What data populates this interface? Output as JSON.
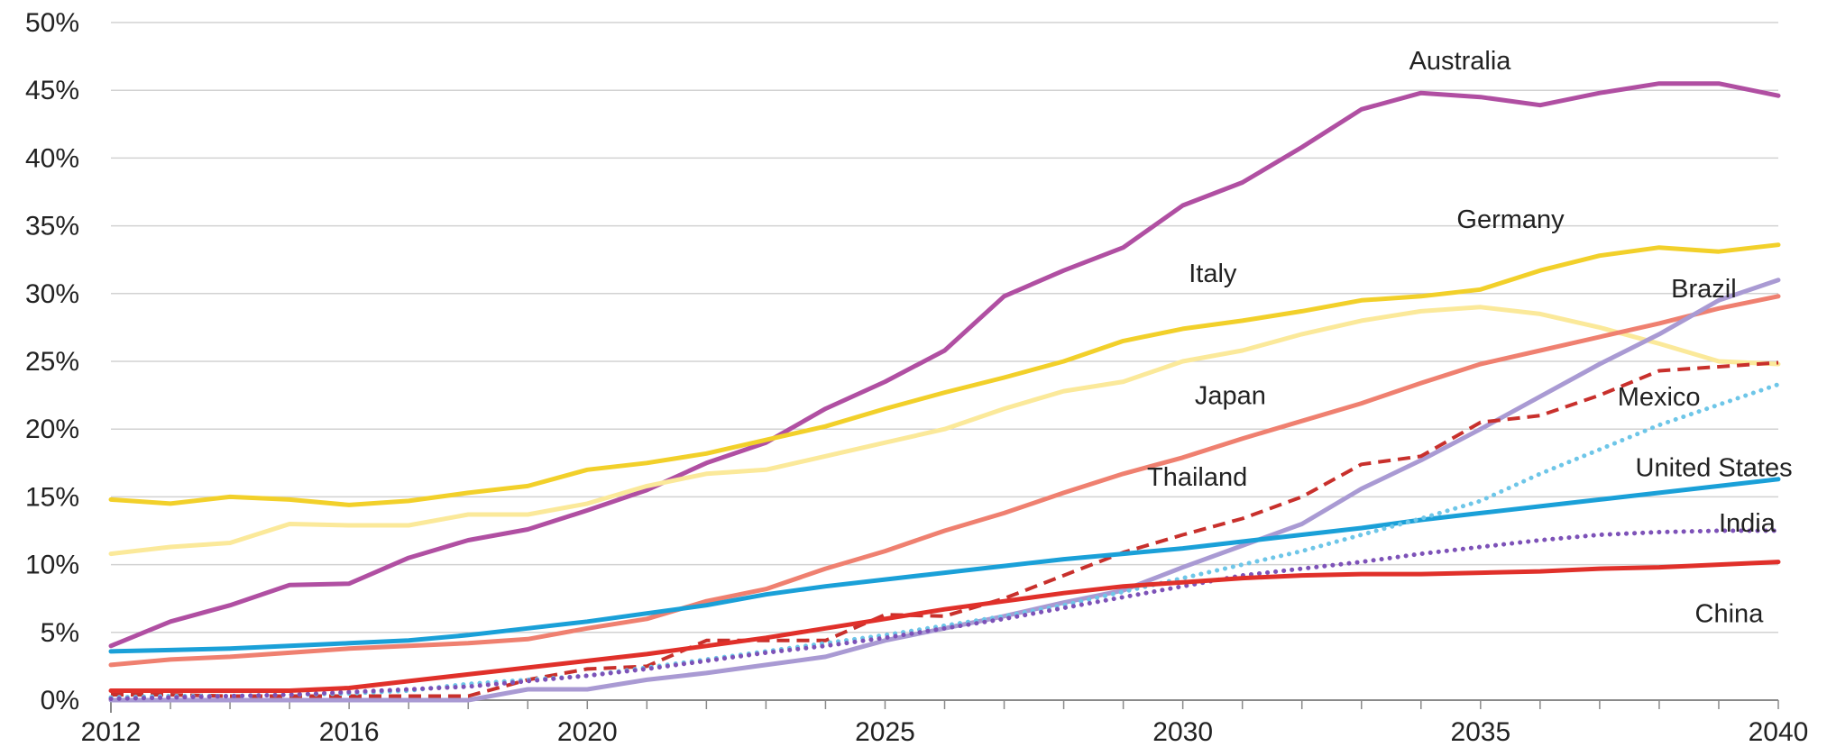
{
  "chart_data": {
    "type": "line",
    "title": "",
    "xlabel": "",
    "ylabel": "",
    "xlim": [
      2012,
      2040
    ],
    "ylim": [
      0,
      50
    ],
    "y_ticks": [
      "0%",
      "5%",
      "10%",
      "15%",
      "20%",
      "25%",
      "30%",
      "35%",
      "40%",
      "45%",
      "50%"
    ],
    "x_ticks": [
      "2012",
      "2016",
      "2020",
      "2025",
      "2030",
      "2035",
      "2040"
    ],
    "x": [
      2012,
      2013,
      2014,
      2015,
      2016,
      2017,
      2018,
      2019,
      2020,
      2021,
      2022,
      2023,
      2024,
      2025,
      2026,
      2027,
      2028,
      2029,
      2030,
      2031,
      2032,
      2033,
      2034,
      2035,
      2036,
      2037,
      2038,
      2039,
      2040
    ],
    "grid": "horizontal",
    "legend": "none",
    "series": [
      {
        "name": "Australia",
        "color": "#b04fa2",
        "style": "solid",
        "values": [
          4,
          5.8,
          7,
          8.5,
          8.6,
          10.5,
          11.8,
          12.6,
          14,
          15.5,
          17.5,
          19,
          21.5,
          23.5,
          25.8,
          29.8,
          31.7,
          33.4,
          36.5,
          38.2,
          40.8,
          43.6,
          44.8,
          44.5,
          43.9,
          44.8,
          45.5,
          45.5,
          44.6
        ]
      },
      {
        "name": "Germany",
        "color": "#f2d02a",
        "style": "solid",
        "values": [
          14.8,
          14.5,
          15,
          14.8,
          14.4,
          14.7,
          15.3,
          15.8,
          17,
          17.5,
          18.2,
          19.2,
          20.2,
          21.5,
          22.7,
          23.8,
          25,
          26.5,
          27.4,
          28,
          28.7,
          29.5,
          29.8,
          30.3,
          31.7,
          32.8,
          33.4,
          33.1,
          33.6
        ]
      },
      {
        "name": "Italy",
        "color": "#fbe99a",
        "style": "solid",
        "values": [
          10.8,
          11.3,
          11.6,
          13,
          12.9,
          12.9,
          13.7,
          13.7,
          14.5,
          15.8,
          16.7,
          17,
          18,
          19,
          20,
          21.5,
          22.8,
          23.5,
          25,
          25.8,
          27,
          28,
          28.7,
          29,
          28.5,
          27.5,
          26.3,
          25,
          24.8
        ]
      },
      {
        "name": "Japan",
        "color": "#ef8070",
        "style": "solid",
        "values": [
          2.6,
          3,
          3.2,
          3.5,
          3.8,
          4,
          4.2,
          4.5,
          5.3,
          6,
          7.3,
          8.2,
          9.7,
          11,
          12.5,
          13.8,
          15.3,
          16.7,
          17.9,
          19.3,
          20.6,
          21.9,
          23.4,
          24.8,
          25.8,
          26.8,
          27.8,
          28.9,
          29.8
        ]
      },
      {
        "name": "Brazil",
        "color": "#a99ad3",
        "style": "solid",
        "values": [
          0,
          0,
          0,
          0,
          0,
          0,
          0,
          0.8,
          0.8,
          1.5,
          2,
          2.6,
          3.2,
          4.4,
          5.3,
          6.2,
          7.2,
          8.1,
          9.8,
          11.4,
          13,
          15.6,
          17.7,
          20,
          22.4,
          24.8,
          27,
          29.5,
          31
        ]
      },
      {
        "name": "Mexico",
        "color": "#c8302c",
        "style": "dashed",
        "values": [
          0.4,
          0.4,
          0.3,
          0.3,
          0.3,
          0.3,
          0.3,
          1.5,
          2.3,
          2.5,
          4.4,
          4.4,
          4.4,
          6.3,
          6.2,
          7.5,
          9.2,
          10.9,
          12.2,
          13.4,
          15,
          17.4,
          18,
          20.5,
          21,
          22.5,
          24.3,
          24.6,
          24.9
        ]
      },
      {
        "name": "United States",
        "color": "#1aa0d8",
        "style": "solid",
        "values": [
          3.6,
          3.7,
          3.8,
          4,
          4.2,
          4.4,
          4.8,
          5.3,
          5.8,
          6.4,
          7,
          7.8,
          8.4,
          8.9,
          9.4,
          9.9,
          10.4,
          10.8,
          11.2,
          11.7,
          12.2,
          12.7,
          13.3,
          13.8,
          14.3,
          14.8,
          15.3,
          15.8,
          16.3
        ]
      },
      {
        "name": "",
        "color": "#6ec6e8",
        "style": "dotted",
        "values": [
          0.2,
          0.3,
          0.3,
          0.4,
          0.5,
          0.7,
          1.2,
          1.5,
          1.8,
          2.4,
          3,
          3.6,
          4.2,
          4.8,
          5.5,
          6.2,
          7,
          8,
          9,
          10,
          11,
          12.2,
          13.4,
          14.7,
          16.7,
          18.5,
          20.3,
          21.8,
          23.3
        ]
      },
      {
        "name": "India",
        "color": "#7d52b8",
        "style": "dotted",
        "values": [
          0.1,
          0.2,
          0.3,
          0.4,
          0.6,
          0.8,
          1,
          1.4,
          1.8,
          2.3,
          2.9,
          3.5,
          4,
          4.6,
          5.3,
          6,
          6.8,
          7.6,
          8.4,
          9.2,
          9.7,
          10.2,
          10.8,
          11.3,
          11.8,
          12.2,
          12.4,
          12.5,
          12.5
        ]
      },
      {
        "name": "China",
        "color": "#e0302a",
        "style": "solid",
        "values": [
          0.7,
          0.7,
          0.7,
          0.7,
          0.9,
          1.4,
          1.9,
          2.4,
          2.9,
          3.4,
          4,
          4.6,
          5.3,
          6,
          6.7,
          7.3,
          7.9,
          8.4,
          8.7,
          9,
          9.2,
          9.3,
          9.3,
          9.4,
          9.5,
          9.7,
          9.8,
          10,
          10.2
        ]
      }
    ],
    "labels": [
      {
        "text": "Australia",
        "x": 2033.8,
        "y": 47.2
      },
      {
        "text": "Germany",
        "x": 2034.6,
        "y": 35.5
      },
      {
        "text": "Italy",
        "x": 2030.1,
        "y": 31.5
      },
      {
        "text": "Brazil",
        "x": 2038.2,
        "y": 30.4
      },
      {
        "text": "Japan",
        "x": 2030.2,
        "y": 22.5
      },
      {
        "text": "Mexico",
        "x": 2037.3,
        "y": 22.4
      },
      {
        "text": "Thailand",
        "x": 2029.4,
        "y": 16.5
      },
      {
        "text": "United States",
        "x": 2037.6,
        "y": 17.2
      },
      {
        "text": "India",
        "x": 2039,
        "y": 13.1
      },
      {
        "text": "China",
        "x": 2038.6,
        "y": 6.4
      }
    ]
  }
}
